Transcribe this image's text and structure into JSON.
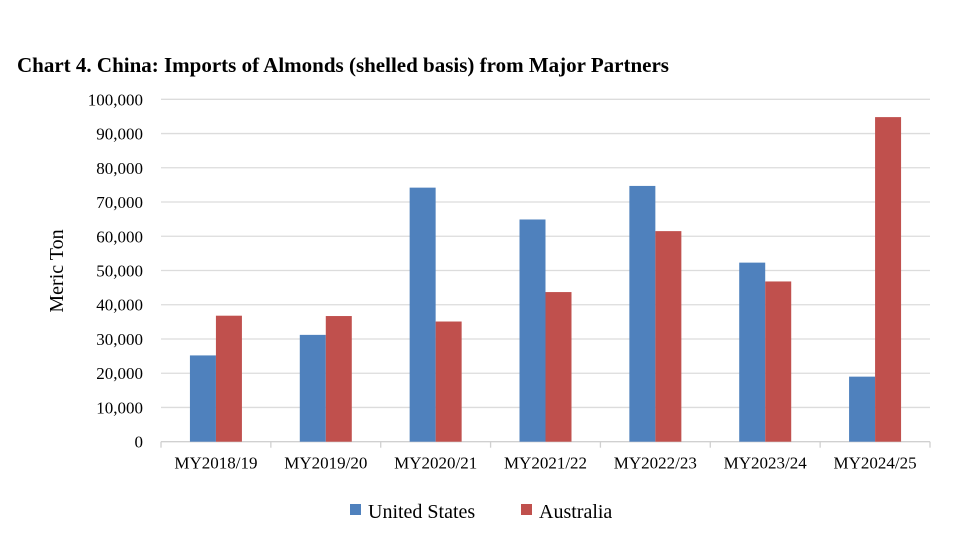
{
  "chart_data": {
    "type": "bar",
    "title": "Chart 4. China: Imports of Almonds (shelled basis) from Major Partners",
    "xlabel": "",
    "ylabel": "Meric Ton",
    "ylim": [
      0,
      100000
    ],
    "yticks": [
      0,
      10000,
      20000,
      30000,
      40000,
      50000,
      60000,
      70000,
      80000,
      90000,
      100000
    ],
    "ytick_labels": [
      "0",
      "10,000",
      "20,000",
      "30,000",
      "40,000",
      "50,000",
      "60,000",
      "70,000",
      "80,000",
      "90,000",
      "100,000"
    ],
    "grid": true,
    "legend_position": "bottom",
    "categories": [
      "MY2018/19",
      "MY2019/20",
      "MY2020/21",
      "MY2021/22",
      "MY2022/23",
      "MY2023/24",
      "MY2024/25"
    ],
    "series": [
      {
        "name": "United States",
        "color": "#4f81bd",
        "values": [
          25200,
          31200,
          74200,
          64900,
          74700,
          52300,
          19000
        ]
      },
      {
        "name": "Australia",
        "color": "#c0504d",
        "values": [
          36800,
          36700,
          35100,
          43700,
          61500,
          46800,
          94800
        ]
      }
    ]
  }
}
